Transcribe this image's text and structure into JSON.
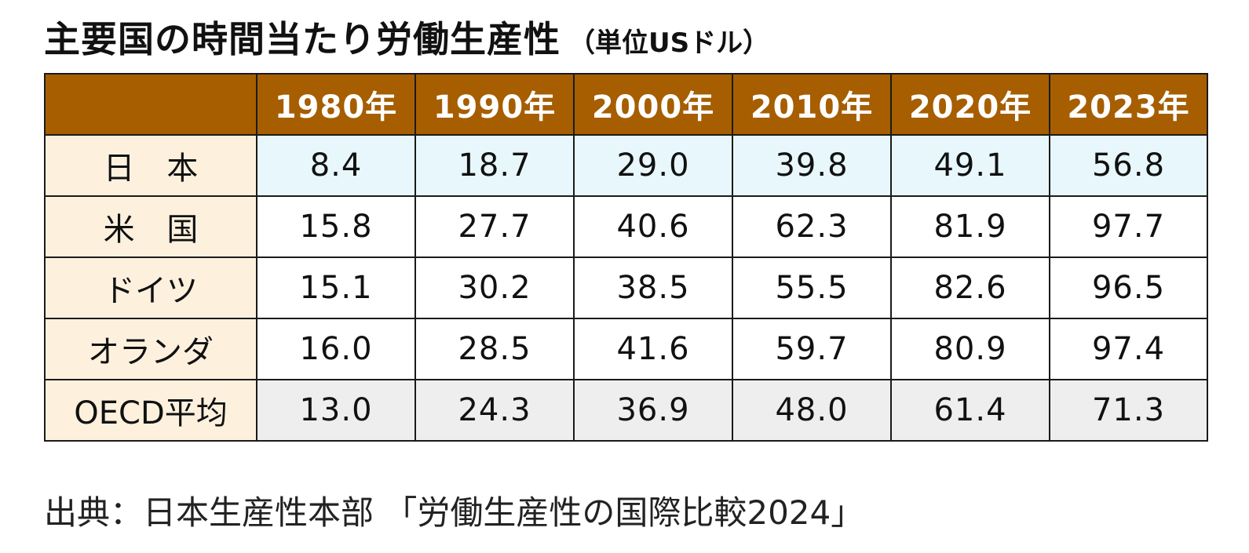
{
  "title": "主要国の時間当たり労働生産性",
  "unit": "（単位USドル）",
  "source": "出典：日本生産性本部 「労働生産性の国際比較2024」",
  "colors": {
    "header_bg": "#a65e00",
    "header_text": "#ffffff",
    "country_bg": "#fdf1de",
    "japan_row_bg": "#e8f7fc",
    "oecd_row_bg": "#eeeeee"
  },
  "chart_data": {
    "type": "table",
    "title": "主要国の時間当たり労働生産性",
    "unit": "（単位USドル）",
    "columns": [
      "1980年",
      "1990年",
      "2000年",
      "2010年",
      "2020年",
      "2023年"
    ],
    "rows": [
      {
        "label": "日 本",
        "values": [
          "8.4",
          "18.7",
          "29.0",
          "39.8",
          "49.1",
          "56.8"
        ]
      },
      {
        "label": "米 国",
        "values": [
          "15.8",
          "27.7",
          "40.6",
          "62.3",
          "81.9",
          "97.7"
        ]
      },
      {
        "label": "ドイツ",
        "values": [
          "15.1",
          "30.2",
          "38.5",
          "55.5",
          "82.6",
          "96.5"
        ]
      },
      {
        "label": "オランダ",
        "values": [
          "16.0",
          "28.5",
          "41.6",
          "59.7",
          "80.9",
          "97.4"
        ]
      },
      {
        "label": "OECD平均",
        "values": [
          "13.0",
          "24.3",
          "36.9",
          "48.0",
          "61.4",
          "71.3"
        ]
      }
    ]
  }
}
